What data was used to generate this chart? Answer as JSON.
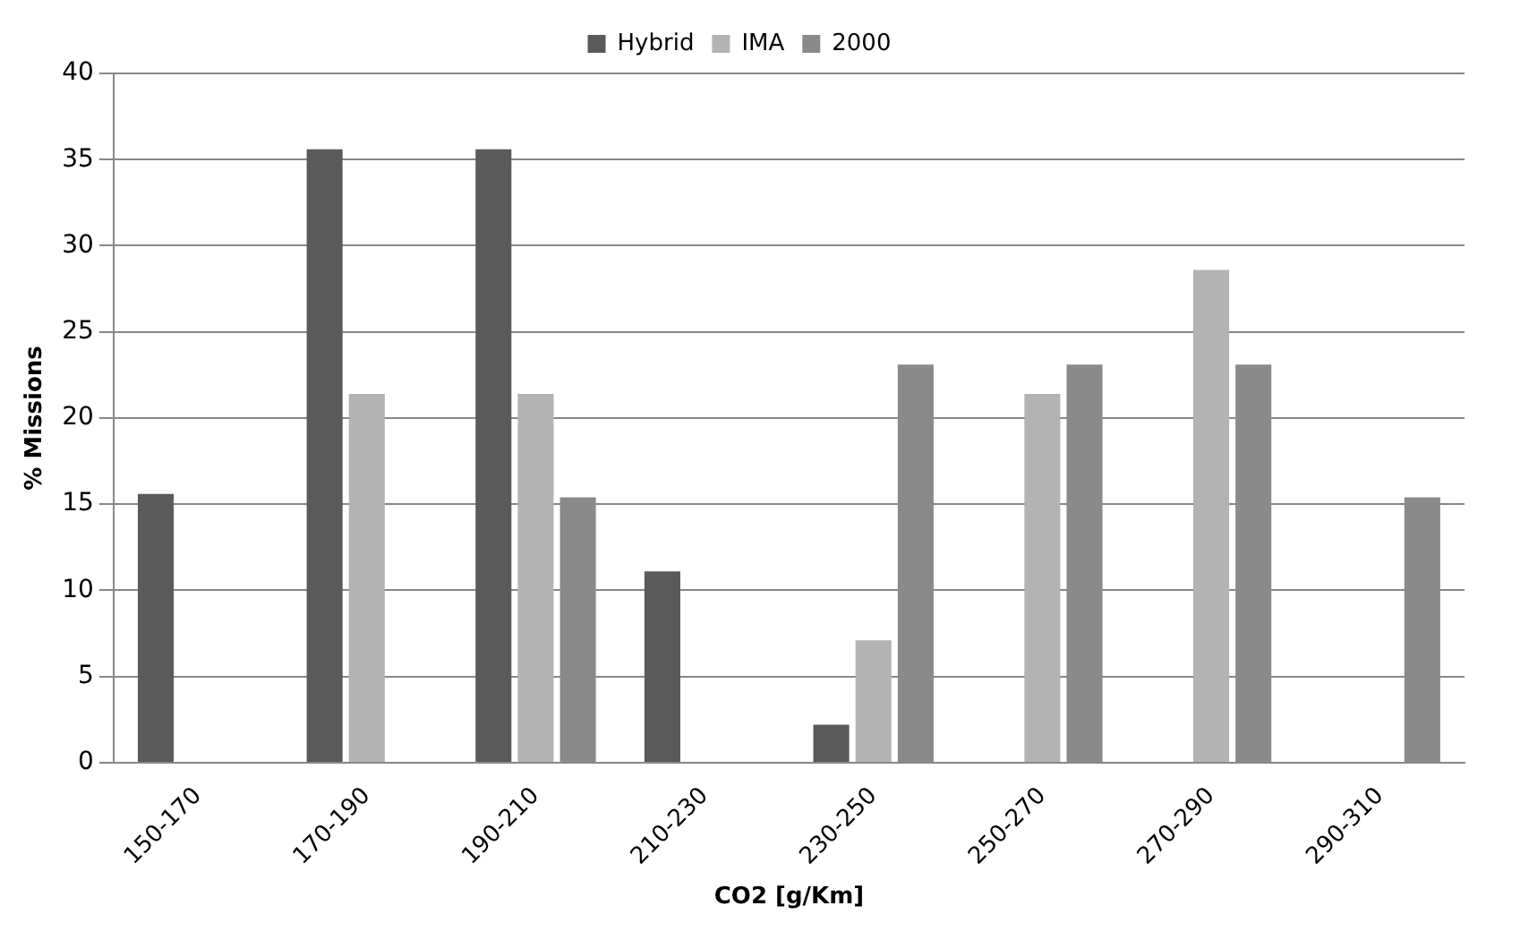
{
  "chart_data": {
    "type": "bar",
    "xlabel": "CO2 [g/Km]",
    "ylabel": "% Missions",
    "categories": [
      "150-170",
      "170-190",
      "190-210",
      "210-230",
      "230-250",
      "250-270",
      "270-290",
      "290-310"
    ],
    "series": [
      {
        "name": "Hybrid",
        "color": "#5a5a5a",
        "values": [
          15.6,
          35.6,
          35.6,
          11.1,
          2.2,
          null,
          null,
          null
        ]
      },
      {
        "name": "IMA",
        "color": "#b3b3b3",
        "values": [
          null,
          21.4,
          21.4,
          null,
          7.1,
          21.4,
          28.6,
          null
        ]
      },
      {
        "name": "2000",
        "color": "#8a8a8a",
        "values": [
          null,
          null,
          15.4,
          null,
          23.1,
          23.1,
          23.1,
          15.4
        ]
      }
    ],
    "ylim": [
      0,
      40
    ],
    "yticks": [
      0,
      5,
      10,
      15,
      20,
      25,
      30,
      35,
      40
    ],
    "grid": "y",
    "legend": "top"
  }
}
